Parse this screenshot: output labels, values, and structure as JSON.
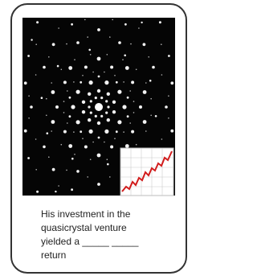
{
  "caption": {
    "lines": [
      "His investment in the",
      "quasicrystal venture",
      "yielded a _____ _____",
      "return"
    ]
  }
}
